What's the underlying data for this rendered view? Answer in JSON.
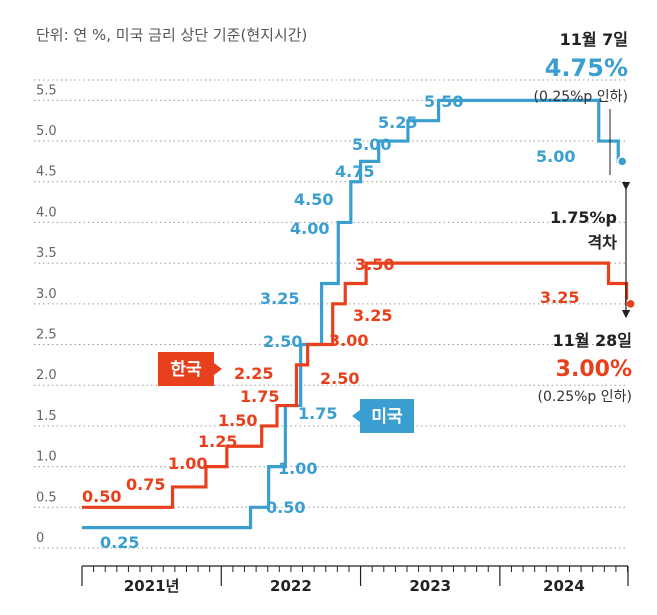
{
  "chart_data": {
    "type": "line",
    "step": true,
    "unit_note": "단위: 연 %, 미국 금리 상단 기준(현지시간)",
    "y_ticks": [
      "0",
      "0.5",
      "1.0",
      "1.5",
      "2.0",
      "2.5",
      "3.0",
      "3.5",
      "4.0",
      "4.5",
      "5.0",
      "5.5"
    ],
    "ylim": [
      0,
      5.75
    ],
    "x_categories": [
      "2021년",
      "2022",
      "2023",
      "2024"
    ],
    "xlim": [
      2021.0,
      2024.92
    ],
    "series": [
      {
        "name": "미국",
        "color": "#3a9fd0",
        "points": [
          [
            2021.0,
            0.25
          ],
          [
            2022.21,
            0.5
          ],
          [
            2022.34,
            1.0
          ],
          [
            2022.46,
            1.75
          ],
          [
            2022.57,
            2.5
          ],
          [
            2022.72,
            3.25
          ],
          [
            2022.84,
            4.0
          ],
          [
            2022.93,
            4.5
          ],
          [
            2023.0,
            4.75
          ],
          [
            2023.13,
            5.0
          ],
          [
            2023.34,
            5.25
          ],
          [
            2023.56,
            5.5
          ],
          [
            2024.71,
            5.0
          ],
          [
            2024.85,
            4.75
          ]
        ],
        "labels": [
          "0.25",
          "0.50",
          "1.00",
          "1.75",
          "2.50",
          "3.25",
          "4.00",
          "4.50",
          "4.75",
          "5.00",
          "5.25",
          "5.50",
          "5.00"
        ]
      },
      {
        "name": "한국",
        "color": "#e8401c",
        "points": [
          [
            2021.0,
            0.5
          ],
          [
            2021.65,
            0.75
          ],
          [
            2021.89,
            1.0
          ],
          [
            2022.04,
            1.25
          ],
          [
            2022.29,
            1.5
          ],
          [
            2022.4,
            1.75
          ],
          [
            2022.54,
            2.25
          ],
          [
            2022.62,
            2.5
          ],
          [
            2022.8,
            3.0
          ],
          [
            2022.89,
            3.25
          ],
          [
            2023.04,
            3.5
          ],
          [
            2024.78,
            3.25
          ],
          [
            2024.91,
            3.0
          ]
        ],
        "labels": [
          "0.50",
          "0.75",
          "1.00",
          "1.25",
          "1.50",
          "1.75",
          "2.25",
          "2.50",
          "3.00",
          "3.25",
          "3.50",
          "3.25"
        ]
      }
    ]
  },
  "annotations": {
    "us_date": "11월 7일",
    "us_rate": "4.75%",
    "us_change": "(0.25%p 인하)",
    "gap_value": "1.75%p",
    "gap_label": "격차",
    "kr_date": "11월 28일",
    "kr_rate": "3.00%",
    "kr_change": "(0.25%p 인하)",
    "korea_tag": "한국",
    "us_tag": "미국"
  }
}
